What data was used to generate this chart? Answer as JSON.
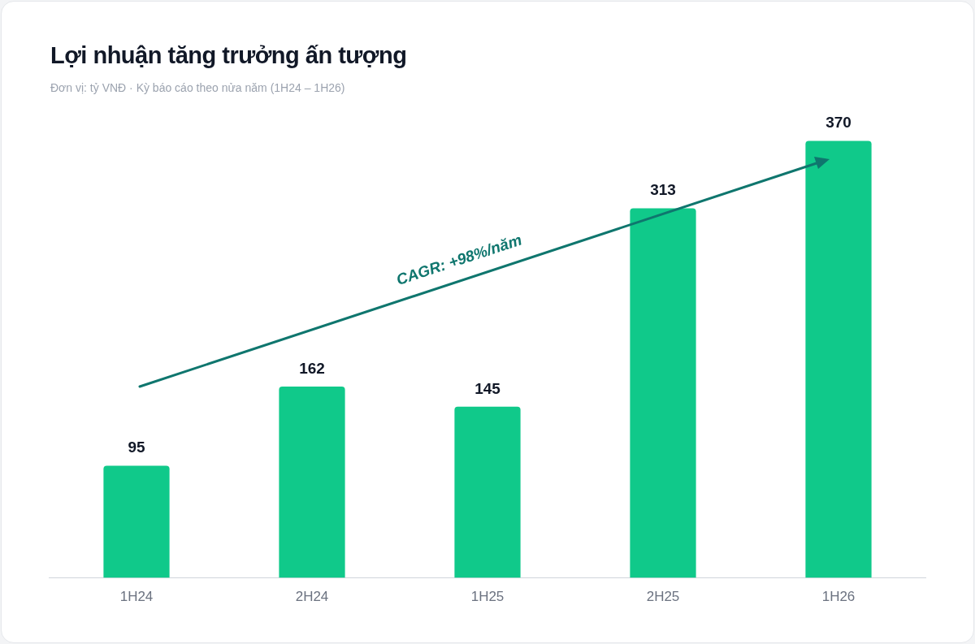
{
  "chart_data": {
    "type": "bar",
    "title": "Lợi nhuận tăng trưởng ấn tượng",
    "subtitle": "Đơn vị: tỷ VNĐ · Kỳ báo cáo theo nửa năm (1H24 – 1H26)",
    "categories": [
      "1H24",
      "2H24",
      "1H25",
      "2H25",
      "1H26"
    ],
    "values": [
      95,
      162,
      145,
      313,
      370
    ],
    "color": "#10c98a",
    "data_labels": true,
    "grid": false,
    "legend": false,
    "tick_labels": "x",
    "annotations": [
      "CAGR: +98%/năm"
    ]
  }
}
